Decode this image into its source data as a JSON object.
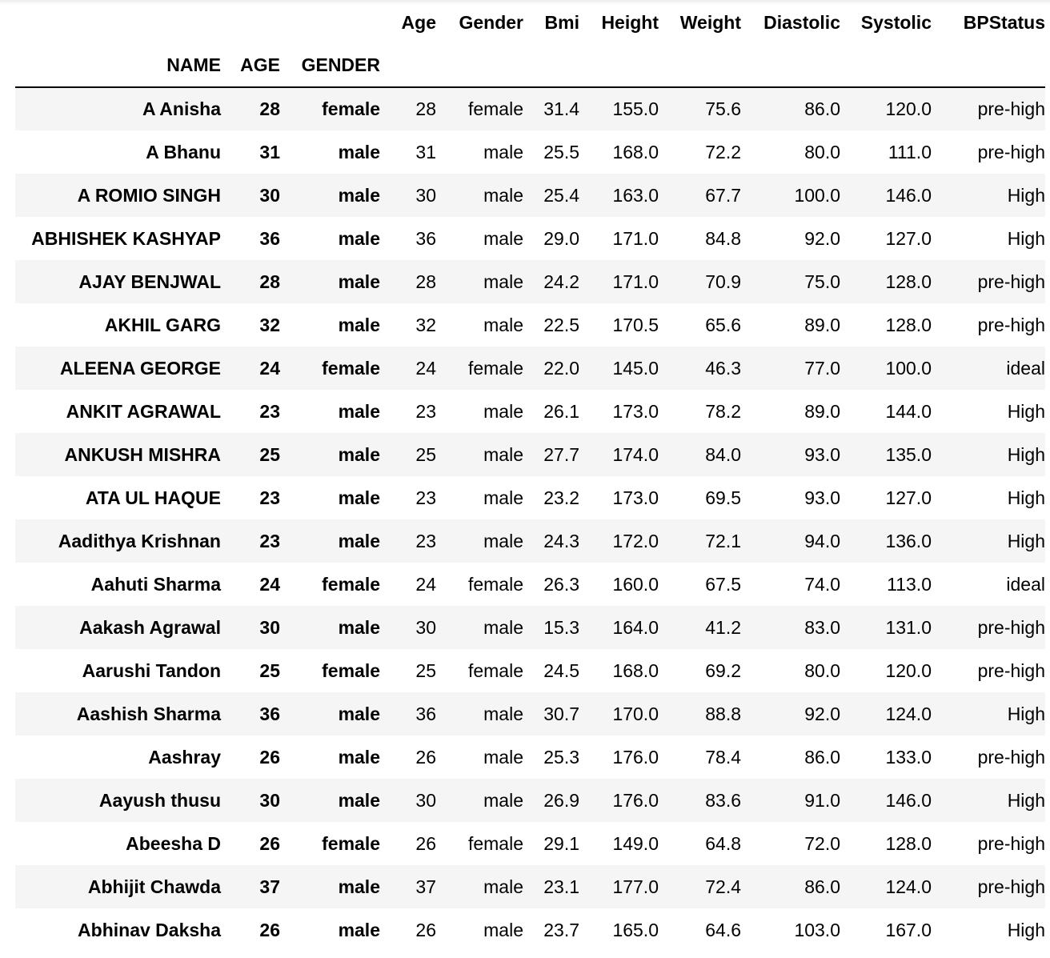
{
  "columns": [
    "Age",
    "Gender",
    "Bmi",
    "Height",
    "Weight",
    "Diastolic",
    "Systolic",
    "BPStatus"
  ],
  "index_names": [
    "NAME",
    "AGE",
    "GENDER"
  ],
  "rows": [
    {
      "name": "A Anisha",
      "age": "28",
      "gender": "female",
      "values": [
        "28",
        "female",
        "31.4",
        "155.0",
        "75.6",
        "86.0",
        "120.0",
        "pre-high"
      ]
    },
    {
      "name": "A Bhanu",
      "age": "31",
      "gender": "male",
      "values": [
        "31",
        "male",
        "25.5",
        "168.0",
        "72.2",
        "80.0",
        "111.0",
        "pre-high"
      ]
    },
    {
      "name": "A ROMIO SINGH",
      "age": "30",
      "gender": "male",
      "values": [
        "30",
        "male",
        "25.4",
        "163.0",
        "67.7",
        "100.0",
        "146.0",
        "High"
      ]
    },
    {
      "name": "ABHISHEK KASHYAP",
      "age": "36",
      "gender": "male",
      "values": [
        "36",
        "male",
        "29.0",
        "171.0",
        "84.8",
        "92.0",
        "127.0",
        "High"
      ]
    },
    {
      "name": "AJAY BENJWAL",
      "age": "28",
      "gender": "male",
      "values": [
        "28",
        "male",
        "24.2",
        "171.0",
        "70.9",
        "75.0",
        "128.0",
        "pre-high"
      ]
    },
    {
      "name": "AKHIL GARG",
      "age": "32",
      "gender": "male",
      "values": [
        "32",
        "male",
        "22.5",
        "170.5",
        "65.6",
        "89.0",
        "128.0",
        "pre-high"
      ]
    },
    {
      "name": "ALEENA GEORGE",
      "age": "24",
      "gender": "female",
      "values": [
        "24",
        "female",
        "22.0",
        "145.0",
        "46.3",
        "77.0",
        "100.0",
        "ideal"
      ]
    },
    {
      "name": "ANKIT AGRAWAL",
      "age": "23",
      "gender": "male",
      "values": [
        "23",
        "male",
        "26.1",
        "173.0",
        "78.2",
        "89.0",
        "144.0",
        "High"
      ]
    },
    {
      "name": "ANKUSH MISHRA",
      "age": "25",
      "gender": "male",
      "values": [
        "25",
        "male",
        "27.7",
        "174.0",
        "84.0",
        "93.0",
        "135.0",
        "High"
      ]
    },
    {
      "name": "ATA UL HAQUE",
      "age": "23",
      "gender": "male",
      "values": [
        "23",
        "male",
        "23.2",
        "173.0",
        "69.5",
        "93.0",
        "127.0",
        "High"
      ]
    },
    {
      "name": "Aadithya Krishnan",
      "age": "23",
      "gender": "male",
      "values": [
        "23",
        "male",
        "24.3",
        "172.0",
        "72.1",
        "94.0",
        "136.0",
        "High"
      ]
    },
    {
      "name": "Aahuti Sharma",
      "age": "24",
      "gender": "female",
      "values": [
        "24",
        "female",
        "26.3",
        "160.0",
        "67.5",
        "74.0",
        "113.0",
        "ideal"
      ]
    },
    {
      "name": "Aakash Agrawal",
      "age": "30",
      "gender": "male",
      "values": [
        "30",
        "male",
        "15.3",
        "164.0",
        "41.2",
        "83.0",
        "131.0",
        "pre-high"
      ]
    },
    {
      "name": "Aarushi Tandon",
      "age": "25",
      "gender": "female",
      "values": [
        "25",
        "female",
        "24.5",
        "168.0",
        "69.2",
        "80.0",
        "120.0",
        "pre-high"
      ]
    },
    {
      "name": "Aashish Sharma",
      "age": "36",
      "gender": "male",
      "values": [
        "36",
        "male",
        "30.7",
        "170.0",
        "88.8",
        "92.0",
        "124.0",
        "High"
      ]
    },
    {
      "name": "Aashray",
      "age": "26",
      "gender": "male",
      "values": [
        "26",
        "male",
        "25.3",
        "176.0",
        "78.4",
        "86.0",
        "133.0",
        "pre-high"
      ]
    },
    {
      "name": "Aayush thusu",
      "age": "30",
      "gender": "male",
      "values": [
        "30",
        "male",
        "26.9",
        "176.0",
        "83.6",
        "91.0",
        "146.0",
        "High"
      ]
    },
    {
      "name": "Abeesha D",
      "age": "26",
      "gender": "female",
      "values": [
        "26",
        "female",
        "29.1",
        "149.0",
        "64.8",
        "72.0",
        "128.0",
        "pre-high"
      ]
    },
    {
      "name": "Abhijit Chawda",
      "age": "37",
      "gender": "male",
      "values": [
        "37",
        "male",
        "23.1",
        "177.0",
        "72.4",
        "86.0",
        "124.0",
        "pre-high"
      ]
    },
    {
      "name": "Abhinav Daksha",
      "age": "26",
      "gender": "male",
      "values": [
        "26",
        "male",
        "23.7",
        "165.0",
        "64.6",
        "103.0",
        "167.0",
        "High"
      ]
    }
  ]
}
